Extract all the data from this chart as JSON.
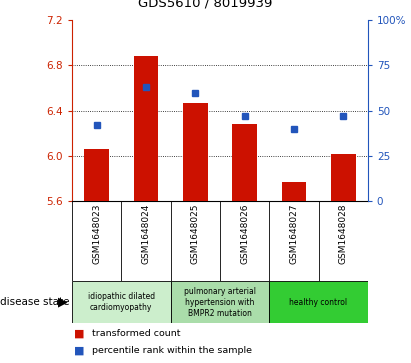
{
  "title": "GDS5610 / 8019939",
  "samples": [
    "GSM1648023",
    "GSM1648024",
    "GSM1648025",
    "GSM1648026",
    "GSM1648027",
    "GSM1648028"
  ],
  "transformed_count": [
    6.06,
    6.88,
    6.47,
    6.28,
    5.77,
    6.02
  ],
  "percentile_rank": [
    42,
    63,
    60,
    47,
    40,
    47
  ],
  "ylim_left": [
    5.6,
    7.2
  ],
  "yticks_left": [
    5.6,
    6.0,
    6.4,
    6.8,
    7.2
  ],
  "ylim_right": [
    0,
    100
  ],
  "yticks_right": [
    0,
    25,
    50,
    75,
    100
  ],
  "bar_color": "#cc1100",
  "dot_color": "#2255bb",
  "bar_bottom": 5.6,
  "disease_groups": [
    {
      "label": "idiopathic dilated\ncardiomyopathy",
      "samples": [
        0,
        1
      ],
      "color": "#cceecc"
    },
    {
      "label": "pulmonary arterial\nhypertension with\nBMPR2 mutation",
      "samples": [
        2,
        3
      ],
      "color": "#aaddaa"
    },
    {
      "label": "healthy control",
      "samples": [
        4,
        5
      ],
      "color": "#33cc33"
    }
  ],
  "legend_items": [
    {
      "label": "transformed count",
      "color": "#cc1100"
    },
    {
      "label": "percentile rank within the sample",
      "color": "#2255bb"
    }
  ],
  "disease_state_label": "disease state",
  "left_axis_color": "#cc2200",
  "right_axis_color": "#2255bb",
  "sample_bg_color": "#d0d0d0",
  "bar_width": 0.5
}
